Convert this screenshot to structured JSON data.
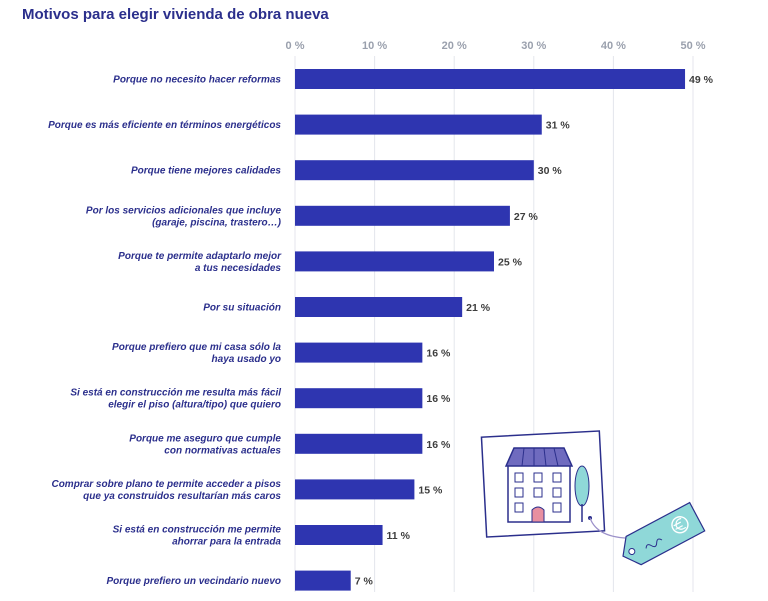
{
  "chart_data": {
    "type": "bar",
    "orientation": "horizontal",
    "title": "Motivos para elegir vivienda de obra nueva",
    "xlim": [
      0,
      50
    ],
    "ticks": [
      "0 %",
      "10 %",
      "20 %",
      "30 %",
      "40 %",
      "50 %"
    ],
    "grid": true,
    "categories": [
      [
        "Porque no necesito hacer reformas"
      ],
      [
        "Porque es más eficiente en términos energéticos"
      ],
      [
        "Porque tiene mejores calidades"
      ],
      [
        "Por los servicios adicionales que incluye",
        "(garaje, piscina, trastero…)"
      ],
      [
        "Porque te permite adaptarlo mejor",
        "a tus necesidades"
      ],
      [
        "Por su situación"
      ],
      [
        "Porque prefiero que mi casa sólo la",
        "haya usado yo"
      ],
      [
        "Si está en construcción me resulta más fácil",
        "elegir el piso (altura/tipo) que quiero"
      ],
      [
        "Porque me aseguro que cumple",
        "con normativas actuales"
      ],
      [
        "Comprar sobre plano te permite acceder a pisos",
        "que ya construidos resultarían más caros"
      ],
      [
        "Si está en construcción me permite",
        "ahorrar para la entrada"
      ],
      [
        "Porque prefiero un vecindario nuevo"
      ]
    ],
    "values": [
      49,
      31,
      30,
      27,
      25,
      21,
      16,
      16,
      16,
      15,
      11,
      7
    ],
    "value_labels": [
      "49 %",
      "31 %",
      "30 %",
      "27 %",
      "25 %",
      "21 %",
      "16 %",
      "16 %",
      "16 %",
      "15 %",
      "11 %",
      "7 %"
    ],
    "colors": {
      "bar": "#2e35b0",
      "title": "#2b2f8c",
      "tick": "#9aa0ad",
      "value": "#3d3d3d"
    }
  }
}
